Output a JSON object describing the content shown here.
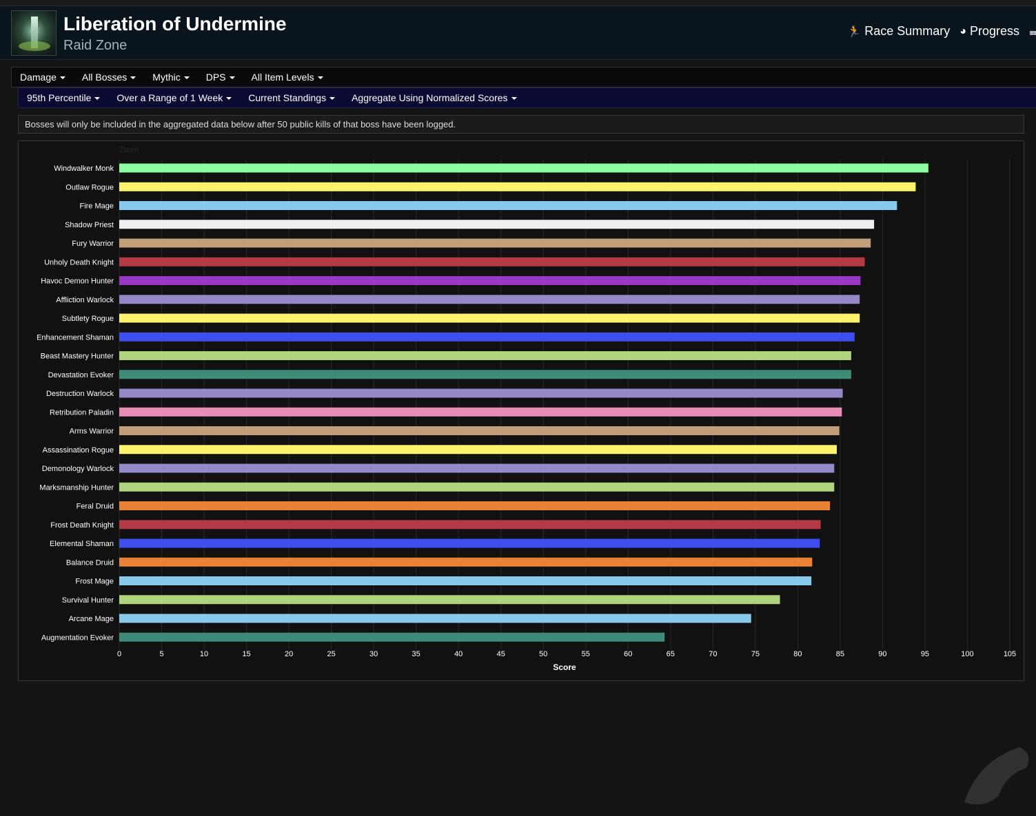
{
  "header": {
    "title": "Liberation of Undermine",
    "subtitle": "Raid Zone",
    "nav": [
      {
        "label": "Race Summary",
        "icon": "running-person-icon"
      },
      {
        "label": "Progress",
        "icon": "globe-icon"
      }
    ]
  },
  "filters_primary": [
    "Damage",
    "All Bosses",
    "Mythic",
    "DPS",
    "All Item Levels"
  ],
  "filters_secondary": [
    "95th Percentile",
    "Over a Range of 1 Week",
    "Current Standings",
    "Aggregate Using Normalized Scores"
  ],
  "notice": "Bosses will only be included in the aggregated data below after 50 public kills of that boss have been logged.",
  "chart_zoom_label": "Zoom",
  "chart_data": {
    "type": "bar",
    "orientation": "horizontal",
    "xlabel": "Score",
    "xlim": [
      0,
      105
    ],
    "x_ticks": [
      0,
      5,
      10,
      15,
      20,
      25,
      30,
      35,
      40,
      45,
      50,
      55,
      60,
      65,
      70,
      75,
      80,
      85,
      90,
      95,
      100,
      105
    ],
    "grid": true,
    "legend": "none",
    "categories": [
      "Windwalker Monk",
      "Outlaw Rogue",
      "Fire Mage",
      "Shadow Priest",
      "Fury Warrior",
      "Unholy Death Knight",
      "Havoc Demon Hunter",
      "Affliction Warlock",
      "Subtlety Rogue",
      "Enhancement Shaman",
      "Beast Mastery Hunter",
      "Devastation Evoker",
      "Destruction Warlock",
      "Retribution Paladin",
      "Arms Warrior",
      "Assassination Rogue",
      "Demonology Warlock",
      "Marksmanship Hunter",
      "Feral Druid",
      "Frost Death Knight",
      "Elemental Shaman",
      "Balance Druid",
      "Frost Mage",
      "Survival Hunter",
      "Arcane Mage",
      "Augmentation Evoker"
    ],
    "values": [
      95.4,
      93.9,
      91.7,
      89.0,
      88.6,
      87.9,
      87.4,
      87.3,
      87.3,
      86.7,
      86.3,
      86.3,
      85.3,
      85.2,
      84.9,
      84.6,
      84.3,
      84.3,
      83.8,
      82.7,
      82.6,
      81.7,
      81.6,
      77.9,
      74.5,
      64.3
    ],
    "colors": [
      "#8cfca1",
      "#fff36e",
      "#88c9ee",
      "#efefef",
      "#c29f79",
      "#b63a43",
      "#9a38c5",
      "#9688c7",
      "#fff36e",
      "#3d50ef",
      "#b0d37d",
      "#3f8a78",
      "#9688c7",
      "#e68cb7",
      "#c29f79",
      "#fff36e",
      "#9688c7",
      "#b0d37d",
      "#eb8132",
      "#b63a43",
      "#3d50ef",
      "#eb8132",
      "#88c9ee",
      "#b0d37d",
      "#88c9ee",
      "#3f8a78"
    ]
  }
}
